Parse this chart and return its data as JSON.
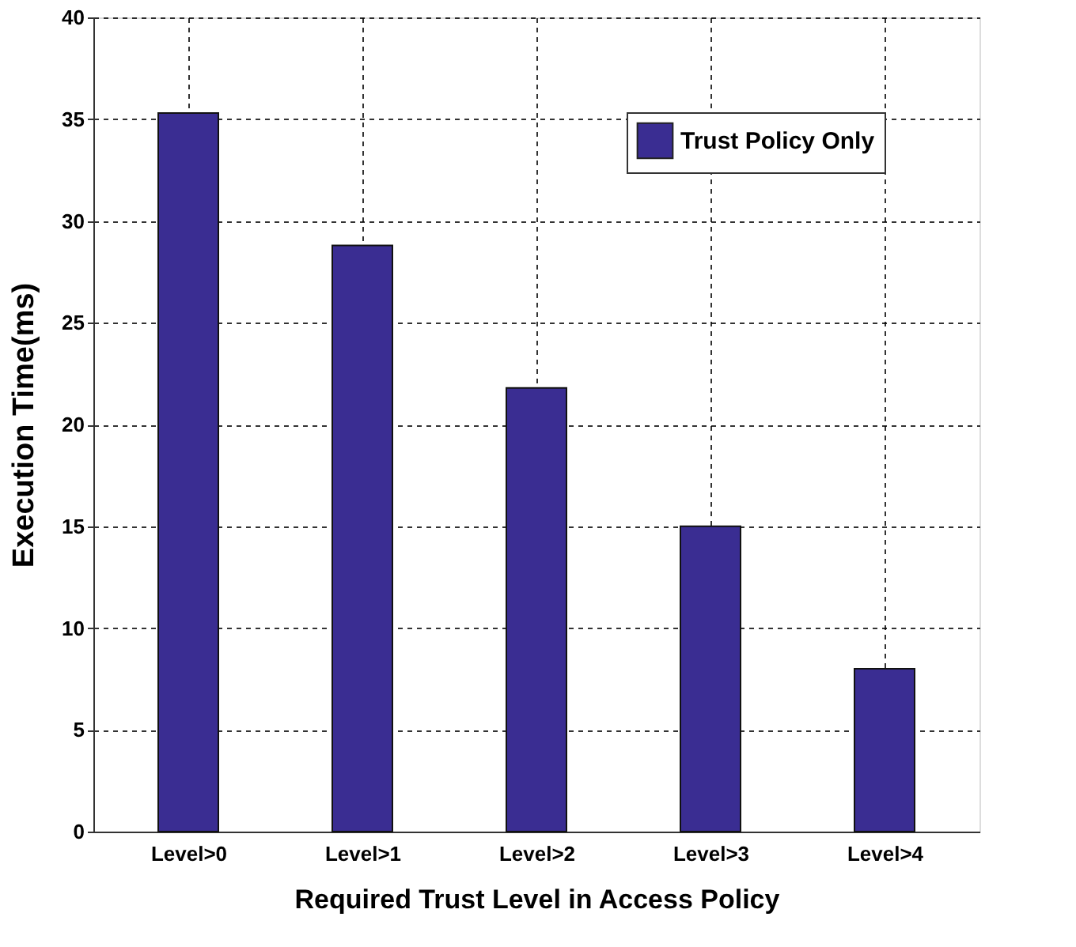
{
  "chart_data": {
    "type": "bar",
    "xlabel": "Required Trust Level in Access Policy",
    "ylabel": "Execution Time(ms)",
    "categories": [
      "Level>0",
      "Level>1",
      "Level>2",
      "Level>3",
      "Level>4"
    ],
    "series": [
      {
        "name": "Trust Policy Only",
        "color": "#3a2d92",
        "values": [
          35.3,
          28.8,
          21.8,
          15.0,
          8.0
        ]
      }
    ],
    "ylim": [
      0,
      40
    ],
    "yticks": [
      0,
      5,
      10,
      15,
      20,
      25,
      30,
      35,
      40
    ],
    "grid": true,
    "legend": "top right"
  }
}
